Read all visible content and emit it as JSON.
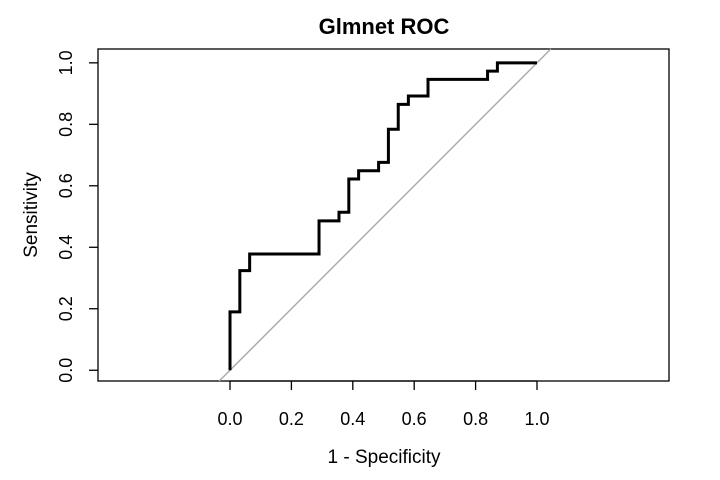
{
  "chart_data": {
    "type": "line",
    "title": "Glmnet ROC",
    "xlabel": "1 - Specificity",
    "ylabel": "Sensitivity",
    "xlim": [
      -0.43,
      1.43
    ],
    "ylim": [
      -0.035,
      1.045
    ],
    "x_ticks": [
      0.0,
      0.2,
      0.4,
      0.6,
      0.8,
      1.0
    ],
    "x_tick_labels": [
      "0.0",
      "0.2",
      "0.4",
      "0.6",
      "0.8",
      "1.0"
    ],
    "y_ticks": [
      0.0,
      0.2,
      0.4,
      0.6,
      0.8,
      1.0
    ],
    "y_tick_labels": [
      "0.0",
      "0.2",
      "0.4",
      "0.6",
      "0.8",
      "1.0"
    ],
    "grid": false,
    "legend": "none",
    "series": [
      {
        "x": [
          0.0,
          0.0,
          0.032,
          0.032,
          0.064,
          0.064,
          0.29,
          0.29,
          0.355,
          0.355,
          0.387,
          0.387,
          0.419,
          0.419,
          0.484,
          0.484,
          0.516,
          0.516,
          0.548,
          0.548,
          0.581,
          0.581,
          0.645,
          0.645,
          0.839,
          0.839,
          0.871,
          0.871,
          1.0
        ],
        "y": [
          0.0,
          0.19,
          0.19,
          0.324,
          0.324,
          0.378,
          0.378,
          0.486,
          0.486,
          0.514,
          0.514,
          0.622,
          0.622,
          0.649,
          0.649,
          0.676,
          0.676,
          0.784,
          0.784,
          0.865,
          0.865,
          0.892,
          0.892,
          0.946,
          0.946,
          0.973,
          0.973,
          1.0,
          1.0
        ],
        "color": "#000000"
      }
    ],
    "reference_line": {
      "from": [
        0,
        0
      ],
      "to": [
        1,
        1
      ],
      "color": "#aaaaaa"
    }
  }
}
